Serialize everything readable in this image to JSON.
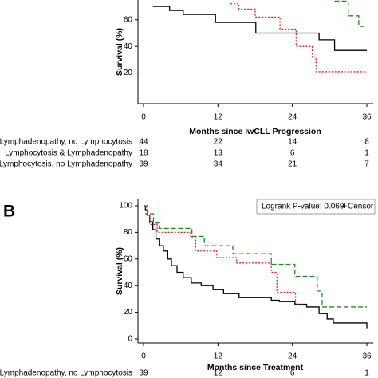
{
  "chart_data": [
    {
      "type": "line",
      "step": true,
      "ylabel": "Survival (%)",
      "xlabel": "Months since iwCLL Progression",
      "xlim": [
        0,
        36
      ],
      "xticks": [
        0,
        12,
        24,
        36
      ],
      "ylim": [
        0,
        100
      ],
      "yticks": [
        20,
        40,
        60
      ],
      "series": [
        {
          "name": "Lymphadenopathy, no Lymphocytosis",
          "color": "#000000",
          "style": "solid",
          "x": [
            1.5,
            4.2,
            6.4,
            11.6,
            18.1,
            28.3,
            30.8,
            36
          ],
          "values": [
            70,
            67,
            64,
            58,
            50,
            45,
            37,
            37
          ],
          "at_risk": [
            44,
            22,
            14,
            8
          ]
        },
        {
          "name": "Lymphocytosis & Lymphadenopathy",
          "color": "#e0201c",
          "style": "dotted",
          "x": [
            14,
            15.4,
            18,
            22,
            24.6,
            27.2,
            27.8,
            36
          ],
          "values": [
            72,
            68,
            62,
            53,
            40,
            32,
            21,
            21
          ],
          "at_risk": [
            18,
            13,
            6,
            1
          ]
        },
        {
          "name": "Lymphocytosis, no Lymphadenopathy",
          "color": "#1e8c1e",
          "style": "dashed",
          "x": [
            30.8,
            33,
            34.7,
            36
          ],
          "values": [
            74,
            63,
            55,
            55
          ],
          "at_risk": [
            39,
            34,
            21,
            7
          ]
        }
      ]
    },
    {
      "type": "line",
      "step": true,
      "panel_label": "B",
      "annotation": "Logrank P-value: 0.069",
      "censor_label": "Censor",
      "ylabel": "Survival (%)",
      "xlabel": "Months since Treatment",
      "xlim": [
        0,
        36
      ],
      "xticks": [
        0,
        12,
        24,
        36
      ],
      "ylim": [
        0,
        100
      ],
      "yticks": [
        0,
        20,
        40,
        60,
        80,
        100
      ],
      "series": [
        {
          "name": "Lymphadenopathy, no Lymphocytosis",
          "color": "#000000",
          "style": "solid",
          "x": [
            0,
            0.3,
            0.6,
            1,
            1.5,
            2,
            2.6,
            3.2,
            3.9,
            4.5,
            5.4,
            6.4,
            7.7,
            9.3,
            11.2,
            12.9,
            15.4,
            20.6,
            21.9,
            24.4,
            26.3,
            28.3,
            29.6,
            30.6,
            36
          ],
          "values": [
            100,
            97,
            93,
            88,
            82,
            75,
            70,
            66,
            60,
            55,
            50,
            46,
            42,
            40,
            37,
            34,
            31,
            29,
            28,
            26,
            24,
            19,
            15,
            12,
            8
          ],
          "at_risk": [
            39,
            12,
            6,
            1
          ]
        },
        {
          "color": "#e0201c",
          "style": "dotted",
          "x": [
            0,
            0.4,
            1,
            2.2,
            7.6,
            8.4,
            11.8,
            15,
            20.6,
            21.5,
            24.5,
            25.5
          ],
          "values": [
            100,
            93,
            86,
            80,
            76,
            66,
            61,
            57,
            50,
            35,
            26,
            26
          ]
        },
        {
          "color": "#1e8c1e",
          "style": "dashed",
          "x": [
            0,
            0.6,
            1.6,
            2.6,
            7.8,
            9.8,
            14.4,
            20.6,
            24.4,
            28,
            28.8,
            36
          ],
          "values": [
            100,
            94,
            87,
            83,
            77,
            70,
            64,
            56,
            47,
            36,
            24,
            24
          ]
        }
      ]
    }
  ]
}
